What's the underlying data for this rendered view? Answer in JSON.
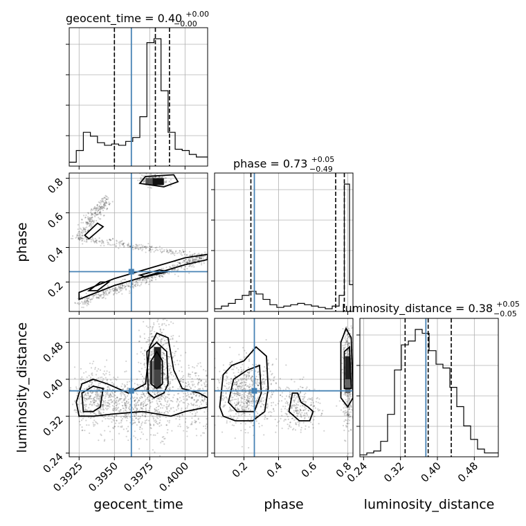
{
  "chart_data": {
    "type": "corner",
    "parameters": [
      "geocent_time",
      "phase",
      "luminosity_distance"
    ],
    "injection": {
      "geocent_time": 0.3962,
      "phase": 0.26,
      "luminosity_distance": 0.375
    },
    "panel_titles": [
      {
        "param": "geocent_time",
        "lead": "geocent_time = 0.40",
        "plus": "+0.00",
        "minus": "−0.00"
      },
      {
        "param": "phase",
        "lead": "phase = 0.73",
        "plus": "+0.05",
        "minus": "−0.49"
      },
      {
        "param": "luminosity_distance",
        "lead": "luminosity_distance = 0.38",
        "plus": "+0.05",
        "minus": "−0.05"
      }
    ],
    "axes": {
      "geocent_time": {
        "label": "geocent_time",
        "range": [
          0.3918,
          0.4016
        ],
        "ticks": [
          0.3925,
          0.395,
          0.3975,
          0.4
        ],
        "tick_labels": [
          "0.3925",
          "0.3950",
          "0.3975",
          "0.4000"
        ]
      },
      "phase": {
        "label": "phase",
        "range": [
          0.03,
          0.83
        ],
        "ticks": [
          0.2,
          0.4,
          0.6,
          0.8
        ],
        "tick_labels": [
          "0.2",
          "0.4",
          "0.6",
          "0.8"
        ]
      },
      "luminosity_distance": {
        "label": "luminosity_distance",
        "range": [
          0.232,
          0.532
        ],
        "ticks": [
          0.24,
          0.32,
          0.4,
          0.48
        ],
        "tick_labels": [
          "0.24",
          "0.32",
          "0.40",
          "0.48"
        ]
      }
    },
    "histograms": {
      "geocent_time": {
        "edges": [
          0.3918,
          0.3923,
          0.3928,
          0.3933,
          0.3938,
          0.3943,
          0.3948,
          0.3953,
          0.3958,
          0.3963,
          0.3968,
          0.3973,
          0.3978,
          0.3983,
          0.3988,
          0.3993,
          0.3998,
          0.4003,
          0.4008,
          0.4013,
          0.4016
        ],
        "counts": [
          3,
          12,
          26,
          23,
          18,
          16,
          17,
          16,
          19,
          22,
          38,
          95,
          98,
          58,
          26,
          13,
          12,
          9,
          7,
          7
        ]
      },
      "phase": {
        "edges": [
          0.03,
          0.07,
          0.11,
          0.15,
          0.19,
          0.23,
          0.27,
          0.31,
          0.35,
          0.39,
          0.43,
          0.47,
          0.51,
          0.55,
          0.59,
          0.63,
          0.67,
          0.71,
          0.75,
          0.78,
          0.81,
          0.83
        ],
        "counts": [
          2,
          4,
          6,
          9,
          12,
          15,
          13,
          9,
          5,
          3,
          4,
          5,
          6,
          5,
          4,
          3,
          2,
          4,
          12,
          95,
          20
        ]
      },
      "luminosity_distance": {
        "edges": [
          0.232,
          0.247,
          0.262,
          0.277,
          0.292,
          0.307,
          0.322,
          0.337,
          0.352,
          0.367,
          0.382,
          0.397,
          0.412,
          0.427,
          0.442,
          0.457,
          0.472,
          0.487,
          0.502,
          0.517,
          0.532
        ],
        "counts": [
          1,
          2,
          3,
          8,
          22,
          45,
          58,
          60,
          66,
          64,
          55,
          48,
          46,
          36,
          26,
          16,
          9,
          4,
          2,
          2
        ]
      }
    },
    "quantiles": {
      "geocent_time": [
        0.395,
        0.3979,
        0.3989
      ],
      "phase": [
        0.24,
        0.73,
        0.78
      ],
      "luminosity_distance": [
        0.33,
        0.38,
        0.43
      ]
    }
  }
}
